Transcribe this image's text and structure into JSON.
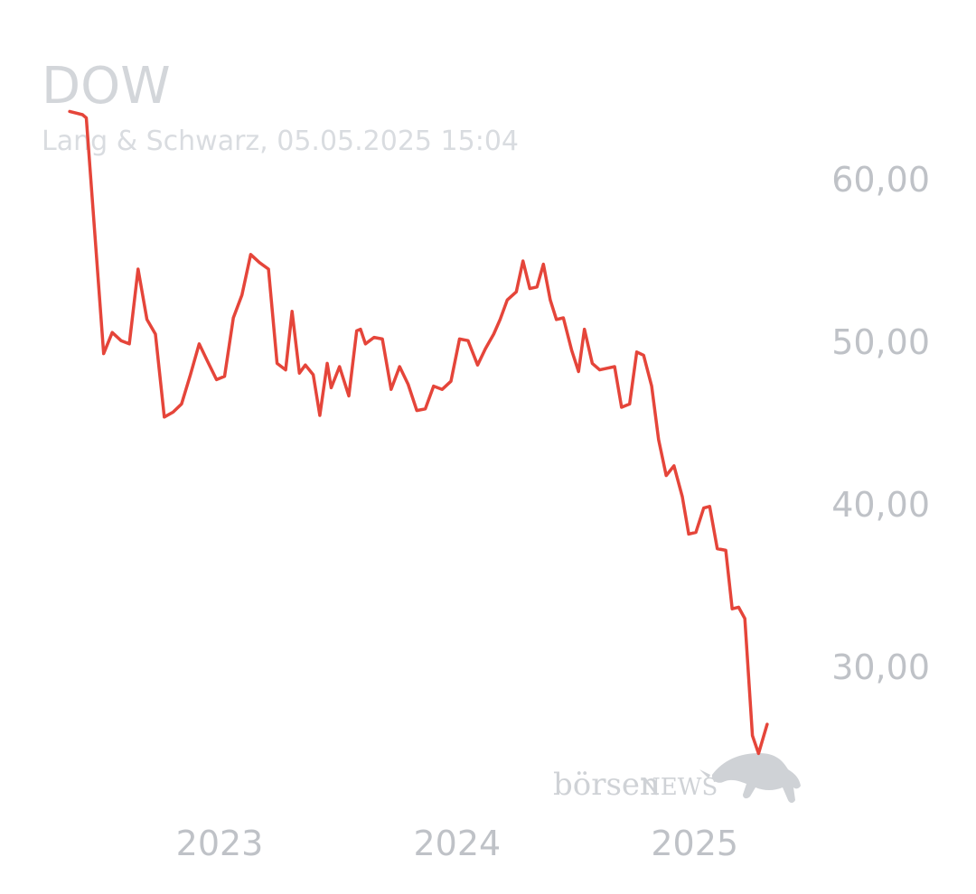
{
  "header": {
    "title": "DOW",
    "subtitle": "Lang & Schwarz, 05.05.2025 15:04"
  },
  "watermark": {
    "brand_lower": "börsen",
    "brand_upper": "NEWS",
    "icon": "bull-icon"
  },
  "colors": {
    "line": "#e5453a",
    "tick_text": "#bfc2c7",
    "title_text": "#d3d6da",
    "watermark": "#cfd2d6"
  },
  "chart_data": {
    "type": "line",
    "title": "DOW",
    "subtitle": "Lang & Schwarz, 05.05.2025 15:04",
    "xlabel": "",
    "ylabel": "",
    "x_ticks": [
      {
        "label": "2023",
        "x": 2023.0
      },
      {
        "label": "2024",
        "x": 2024.0
      },
      {
        "label": "2025",
        "x": 2025.0
      }
    ],
    "y_ticks": [
      {
        "label": "60,00",
        "y": 60
      },
      {
        "label": "50,00",
        "y": 50
      },
      {
        "label": "40,00",
        "y": 40
      },
      {
        "label": "30,00",
        "y": 30
      }
    ],
    "xlim": [
      2022.3,
      2025.45
    ],
    "ylim": [
      22.0,
      67.0
    ],
    "grid": false,
    "y_axis_position": "right",
    "legend": "none",
    "series": [
      {
        "color": "#e5453a",
        "x": [
          2022.369,
          2022.423,
          2022.439,
          2022.512,
          2022.548,
          2022.585,
          2022.62,
          2022.657,
          2022.694,
          2022.73,
          2022.767,
          2022.804,
          2022.84,
          2022.877,
          2022.914,
          2022.95,
          2022.987,
          2023.021,
          2023.058,
          2023.094,
          2023.131,
          2023.168,
          2023.206,
          2023.242,
          2023.278,
          2023.305,
          2023.336,
          2023.361,
          2023.394,
          2023.422,
          2023.453,
          2023.47,
          2023.505,
          2023.544,
          2023.577,
          2023.593,
          2023.614,
          2023.65,
          2023.685,
          2023.722,
          2023.758,
          2023.794,
          2023.83,
          2023.866,
          2023.901,
          2023.937,
          2023.974,
          2024.01,
          2024.046,
          2024.086,
          2024.119,
          2024.154,
          2024.181,
          2024.211,
          2024.249,
          2024.277,
          2024.306,
          2024.336,
          2024.363,
          2024.392,
          2024.418,
          2024.447,
          2024.482,
          2024.511,
          2024.536,
          2024.569,
          2024.6,
          2024.631,
          2024.663,
          2024.692,
          2024.726,
          2024.756,
          2024.785,
          2024.819,
          2024.848,
          2024.88,
          2024.913,
          2024.948,
          2024.975,
          2025.005,
          2025.038,
          2025.063,
          2025.095,
          2025.131,
          2025.158,
          2025.185,
          2025.211,
          2025.243,
          2025.269,
          2025.305
        ],
        "values": [
          64.2,
          64.0,
          63.8,
          49.3,
          50.6,
          50.1,
          49.9,
          54.5,
          51.4,
          50.5,
          45.4,
          45.7,
          46.2,
          48.0,
          49.9,
          48.8,
          47.7,
          47.9,
          51.5,
          52.9,
          55.4,
          54.9,
          54.5,
          48.7,
          48.3,
          51.9,
          48.1,
          48.6,
          48.0,
          45.5,
          48.7,
          47.2,
          48.5,
          46.7,
          50.7,
          50.8,
          49.9,
          50.3,
          50.2,
          47.1,
          48.5,
          47.4,
          45.8,
          45.9,
          47.3,
          47.1,
          47.6,
          50.2,
          50.1,
          48.6,
          49.6,
          50.5,
          51.4,
          52.6,
          53.1,
          55.0,
          53.3,
          53.4,
          54.8,
          52.6,
          51.4,
          51.5,
          49.5,
          48.2,
          50.8,
          48.7,
          48.3,
          48.4,
          48.5,
          46.0,
          46.2,
          49.4,
          49.2,
          47.3,
          44.0,
          41.8,
          42.4,
          40.5,
          38.2,
          38.3,
          39.8,
          39.9,
          37.3,
          37.2,
          33.6,
          33.7,
          33.0,
          25.8,
          24.7,
          26.5
        ]
      }
    ]
  }
}
